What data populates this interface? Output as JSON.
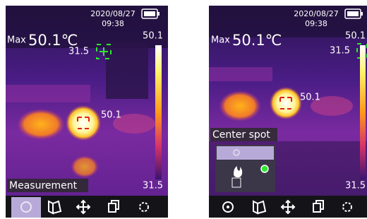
{
  "screens": [
    {
      "date": "2020/08/27",
      "time": "09:38",
      "max_label": "Max",
      "max_value": "50.1℃",
      "center_value": "31.5",
      "scale_max": "50.1",
      "hotspot_value": "50.1",
      "menu_label": "Measurement",
      "scale_min": "31.5"
    },
    {
      "date": "2020/08/27",
      "time": "09:38",
      "max_label": "Max",
      "max_value": "50.1℃",
      "center_value": "31.5",
      "scale_max": "50.1",
      "hotspot_value": "50.1",
      "menu_label": "Center spot",
      "scale_min": "31.5"
    }
  ]
}
